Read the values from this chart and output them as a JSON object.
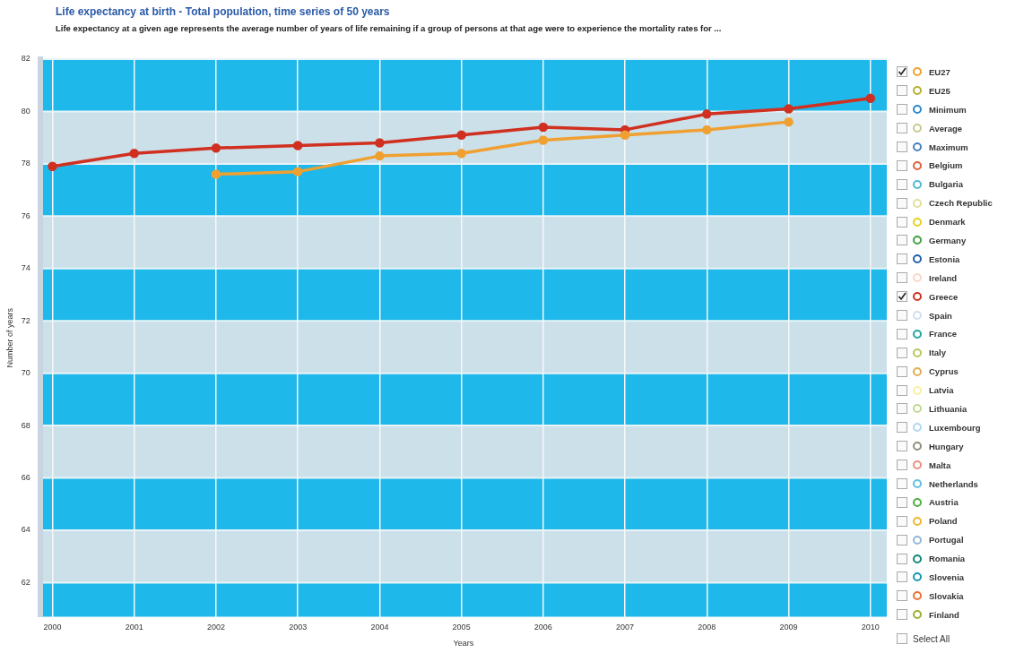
{
  "chart_data": {
    "type": "line",
    "title": "Life expectancy at birth - Total population, time series of 50 years",
    "subtitle": "Life expectancy at a given age represents the average number of years of life remaining if a group of persons at that age were to experience the mortality rates for ...",
    "xlabel": "Years",
    "ylabel": "Number of years",
    "x": [
      2000,
      2001,
      2002,
      2003,
      2004,
      2005,
      2006,
      2007,
      2008,
      2009,
      2010
    ],
    "xlim": [
      1999.85,
      2010.2
    ],
    "xticks": [
      2000,
      2001,
      2002,
      2003,
      2004,
      2005,
      2006,
      2007,
      2008,
      2009,
      2010
    ],
    "ylim": [
      60.7,
      82
    ],
    "yticks": [
      62,
      64,
      66,
      68,
      70,
      72,
      74,
      76,
      78,
      80,
      82
    ],
    "grid": true,
    "legend": "right",
    "marker": "circle",
    "line_style": "solid",
    "annotations": [
      "Select All"
    ],
    "bands": [
      {
        "axis": "y",
        "from": 80,
        "to": 82,
        "color": "#1eb8ea"
      },
      {
        "axis": "y",
        "from": 76,
        "to": 78,
        "color": "#1eb8ea"
      },
      {
        "axis": "y",
        "from": 72,
        "to": 74,
        "color": "#1eb8ea"
      },
      {
        "axis": "y",
        "from": 68,
        "to": 70,
        "color": "#1eb8ea"
      },
      {
        "axis": "y",
        "from": 64,
        "to": 66,
        "color": "#1eb8ea"
      },
      {
        "axis": "y",
        "from": 60.7,
        "to": 62,
        "color": "#1eb8ea"
      },
      {
        "axis": "y",
        "from": 78,
        "to": 80,
        "color": "#cce0ea"
      },
      {
        "axis": "y",
        "from": 74,
        "to": 76,
        "color": "#cce0ea"
      },
      {
        "axis": "y",
        "from": 70,
        "to": 72,
        "color": "#cce0ea"
      },
      {
        "axis": "y",
        "from": 66,
        "to": 68,
        "color": "#cce0ea"
      },
      {
        "axis": "y",
        "from": 62,
        "to": 64,
        "color": "#cce0ea"
      }
    ],
    "series": [
      {
        "name": "EU27",
        "color": "#f0a030",
        "values": [
          null,
          null,
          77.6,
          77.7,
          78.3,
          78.4,
          78.9,
          79.1,
          79.3,
          79.6,
          null
        ]
      },
      {
        "name": "EU25",
        "color": "#b8b030",
        "values": [
          null,
          null,
          null,
          null,
          null,
          null,
          null,
          null,
          null,
          null,
          null
        ]
      },
      {
        "name": "Minimum",
        "color": "#2a8ad0",
        "values": [
          null,
          null,
          null,
          null,
          null,
          null,
          null,
          null,
          null,
          null,
          null
        ]
      },
      {
        "name": "Average",
        "color": "#c8c890",
        "values": [
          null,
          null,
          null,
          null,
          null,
          null,
          null,
          null,
          null,
          null,
          null
        ]
      },
      {
        "name": "Maximum",
        "color": "#4a80c0",
        "values": [
          null,
          null,
          null,
          null,
          null,
          null,
          null,
          null,
          null,
          null,
          null
        ]
      },
      {
        "name": "Belgium",
        "color": "#e06040",
        "values": [
          null,
          null,
          null,
          null,
          null,
          null,
          null,
          null,
          null,
          null,
          null
        ]
      },
      {
        "name": "Bulgaria",
        "color": "#50b8d8",
        "values": [
          null,
          null,
          null,
          null,
          null,
          null,
          null,
          null,
          null,
          null,
          null
        ]
      },
      {
        "name": "Czech Republic",
        "color": "#e0e0a0",
        "values": [
          null,
          null,
          null,
          null,
          null,
          null,
          null,
          null,
          null,
          null,
          null
        ]
      },
      {
        "name": "Denmark",
        "color": "#e8d020",
        "values": [
          null,
          null,
          null,
          null,
          null,
          null,
          null,
          null,
          null,
          null,
          null
        ]
      },
      {
        "name": "Germany",
        "color": "#40a040",
        "values": [
          null,
          null,
          null,
          null,
          null,
          null,
          null,
          null,
          null,
          null,
          null
        ]
      },
      {
        "name": "Estonia",
        "color": "#2060b0",
        "values": [
          null,
          null,
          null,
          null,
          null,
          null,
          null,
          null,
          null,
          null,
          null
        ]
      },
      {
        "name": "Ireland",
        "color": "#f8d8c8",
        "values": [
          null,
          null,
          null,
          null,
          null,
          null,
          null,
          null,
          null,
          null,
          null
        ]
      },
      {
        "name": "Greece",
        "color": "#d03020",
        "values": [
          77.9,
          78.4,
          78.6,
          78.7,
          78.8,
          79.1,
          79.4,
          79.3,
          79.9,
          80.1,
          80.5
        ]
      },
      {
        "name": "Spain",
        "color": "#d0e0f0",
        "values": [
          null,
          null,
          null,
          null,
          null,
          null,
          null,
          null,
          null,
          null,
          null
        ]
      },
      {
        "name": "France",
        "color": "#20a8a0",
        "values": [
          null,
          null,
          null,
          null,
          null,
          null,
          null,
          null,
          null,
          null,
          null
        ]
      },
      {
        "name": "Italy",
        "color": "#b8c860",
        "values": [
          null,
          null,
          null,
          null,
          null,
          null,
          null,
          null,
          null,
          null,
          null
        ]
      },
      {
        "name": "Cyprus",
        "color": "#e0b050",
        "values": [
          null,
          null,
          null,
          null,
          null,
          null,
          null,
          null,
          null,
          null,
          null
        ]
      },
      {
        "name": "Latvia",
        "color": "#f8f0a0",
        "values": [
          null,
          null,
          null,
          null,
          null,
          null,
          null,
          null,
          null,
          null,
          null
        ]
      },
      {
        "name": "Lithuania",
        "color": "#c0d890",
        "values": [
          null,
          null,
          null,
          null,
          null,
          null,
          null,
          null,
          null,
          null,
          null
        ]
      },
      {
        "name": "Luxembourg",
        "color": "#b0d8f0",
        "values": [
          null,
          null,
          null,
          null,
          null,
          null,
          null,
          null,
          null,
          null,
          null
        ]
      },
      {
        "name": "Hungary",
        "color": "#909080",
        "values": [
          null,
          null,
          null,
          null,
          null,
          null,
          null,
          null,
          null,
          null,
          null
        ]
      },
      {
        "name": "Malta",
        "color": "#e89080",
        "values": [
          null,
          null,
          null,
          null,
          null,
          null,
          null,
          null,
          null,
          null,
          null
        ]
      },
      {
        "name": "Netherlands",
        "color": "#60c0e0",
        "values": [
          null,
          null,
          null,
          null,
          null,
          null,
          null,
          null,
          null,
          null,
          null
        ]
      },
      {
        "name": "Austria",
        "color": "#50b040",
        "values": [
          null,
          null,
          null,
          null,
          null,
          null,
          null,
          null,
          null,
          null,
          null
        ]
      },
      {
        "name": "Poland",
        "color": "#f0b830",
        "values": [
          null,
          null,
          null,
          null,
          null,
          null,
          null,
          null,
          null,
          null,
          null
        ]
      },
      {
        "name": "Portugal",
        "color": "#90b8d8",
        "values": [
          null,
          null,
          null,
          null,
          null,
          null,
          null,
          null,
          null,
          null,
          null
        ]
      },
      {
        "name": "Romania",
        "color": "#108878",
        "values": [
          null,
          null,
          null,
          null,
          null,
          null,
          null,
          null,
          null,
          null,
          null
        ]
      },
      {
        "name": "Slovenia",
        "color": "#1898b8",
        "values": [
          null,
          null,
          null,
          null,
          null,
          null,
          null,
          null,
          null,
          null,
          null
        ]
      },
      {
        "name": "Slovakia",
        "color": "#f07030",
        "values": [
          null,
          null,
          null,
          null,
          null,
          null,
          null,
          null,
          null,
          null,
          null
        ]
      },
      {
        "name": "Finland",
        "color": "#a0b030",
        "values": [
          null,
          null,
          null,
          null,
          null,
          null,
          null,
          null,
          null,
          null,
          null
        ]
      }
    ]
  }
}
